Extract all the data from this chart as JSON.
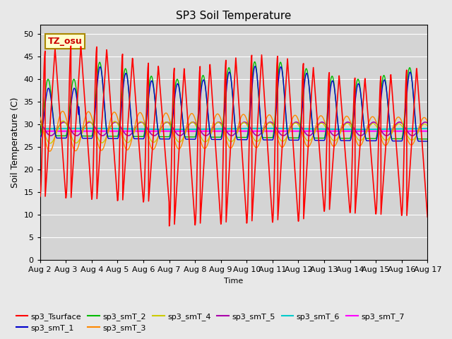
{
  "title": "SP3 Soil Temperature",
  "ylabel": "Soil Temperature (C)",
  "xlabel": "Time",
  "ylim": [
    0,
    52
  ],
  "yticks": [
    0,
    5,
    10,
    15,
    20,
    25,
    30,
    35,
    40,
    45,
    50
  ],
  "background_color": "#e8e8e8",
  "plot_bg_color": "#d4d4d4",
  "grid_color": "#ffffff",
  "series_colors": {
    "sp3_Tsurface": "#ff0000",
    "sp3_smT_1": "#0000cc",
    "sp3_smT_2": "#00bb00",
    "sp3_smT_3": "#ff8800",
    "sp3_smT_4": "#cccc00",
    "sp3_smT_5": "#aa00aa",
    "sp3_smT_6": "#00cccc",
    "sp3_smT_7": "#ff00ff"
  },
  "annotation_text": "TZ_osu",
  "annotation_color": "#cc0000",
  "annotation_bg": "#ffffcc",
  "annotation_border": "#aa8800",
  "num_days": 15,
  "pts_per_day": 144
}
